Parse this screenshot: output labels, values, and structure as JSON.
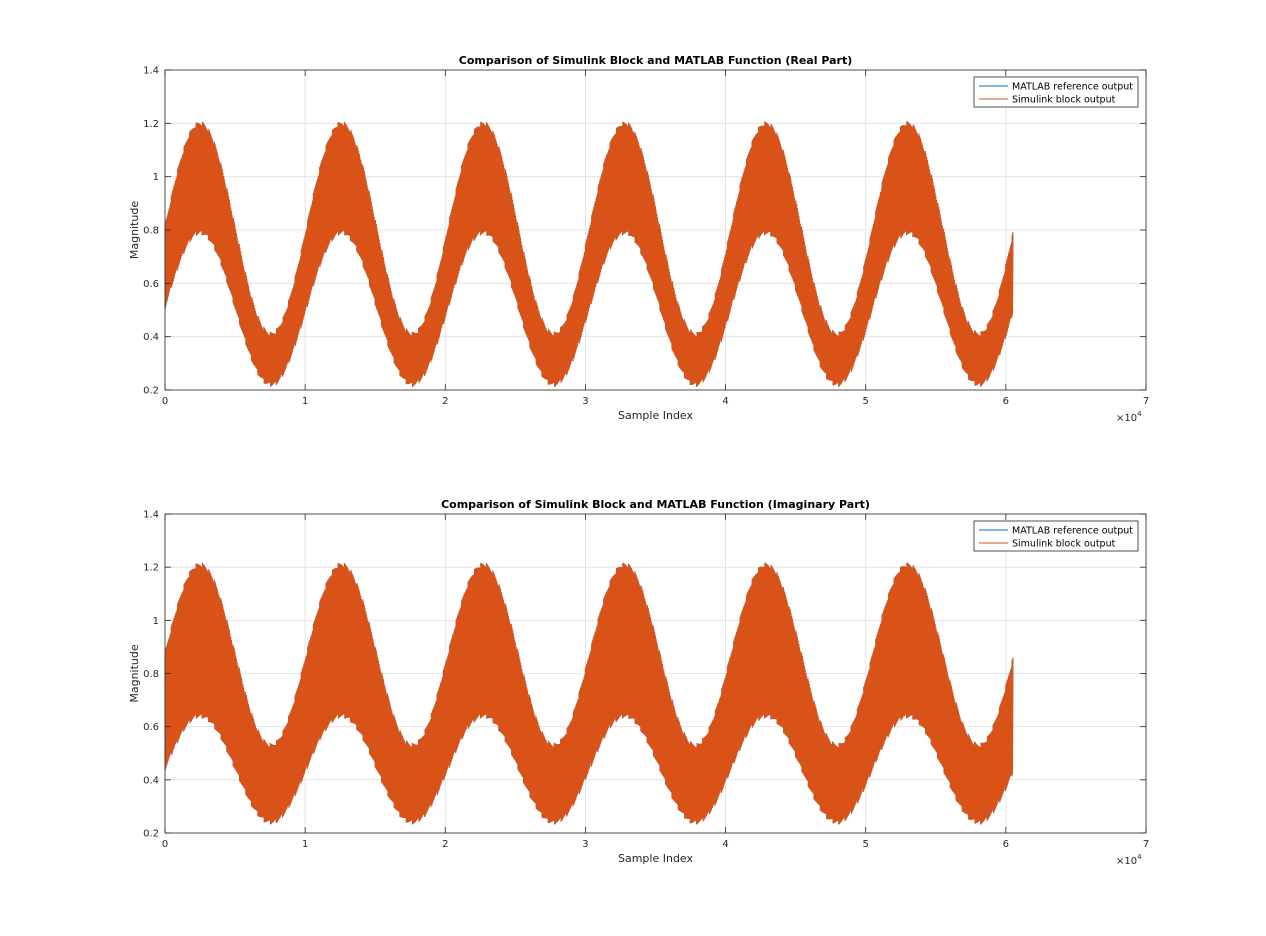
{
  "figure": {
    "background": "#ffffff"
  },
  "chart_data": [
    {
      "type": "line",
      "title": "Comparison of Simulink Block and MATLAB Function (Real Part)",
      "xlabel": "Sample Index",
      "ylabel": "Magnitude",
      "xlim": [
        0,
        70000
      ],
      "ylim": [
        0.2,
        1.4
      ],
      "xticks": [
        0,
        10000,
        20000,
        30000,
        40000,
        50000,
        60000,
        70000
      ],
      "xtick_labels": [
        "0",
        "1",
        "2",
        "3",
        "4",
        "5",
        "6",
        "7"
      ],
      "yticks": [
        0.2,
        0.4,
        0.6,
        0.8,
        1.0,
        1.2,
        1.4
      ],
      "ytick_labels": [
        "0.2",
        "0.4",
        "0.6",
        "0.8",
        "1",
        "1.2",
        "1.4"
      ],
      "x_exponent_base": "×10",
      "x_exponent": "4",
      "grid": true,
      "legend_position": "top-right",
      "x_end": 60500,
      "period": 10100,
      "series": [
        {
          "name": "MATLAB reference output",
          "color": "#0072bd",
          "envelope": {
            "upper_peak_at_x": [
              2500,
              12600,
              22700,
              32800,
              42900,
              53000
            ],
            "upper_peak": 1.2,
            "upper_trough": 0.41,
            "lower_peak": 0.79,
            "lower_trough": 0.22
          }
        },
        {
          "name": "Simulink block output",
          "color": "#d95319",
          "envelope": {
            "upper_peak_at_x": [
              2500,
              12600,
              22700,
              32800,
              42900,
              53000
            ],
            "upper_peak": 1.2,
            "upper_trough": 0.41,
            "lower_peak": 0.79,
            "lower_trough": 0.22
          }
        }
      ]
    },
    {
      "type": "line",
      "title": "Comparison of Simulink Block and MATLAB Function (Imaginary Part)",
      "xlabel": "Sample Index",
      "ylabel": "Magnitude",
      "xlim": [
        0,
        70000
      ],
      "ylim": [
        0.2,
        1.4
      ],
      "xticks": [
        0,
        10000,
        20000,
        30000,
        40000,
        50000,
        60000,
        70000
      ],
      "xtick_labels": [
        "0",
        "1",
        "2",
        "3",
        "4",
        "5",
        "6",
        "7"
      ],
      "yticks": [
        0.2,
        0.4,
        0.6,
        0.8,
        1.0,
        1.2,
        1.4
      ],
      "ytick_labels": [
        "0.2",
        "0.4",
        "0.6",
        "0.8",
        "1",
        "1.2",
        "1.4"
      ],
      "x_exponent_base": "×10",
      "x_exponent": "4",
      "grid": true,
      "legend_position": "top-right",
      "x_end": 60500,
      "period": 10100,
      "series": [
        {
          "name": "MATLAB reference output",
          "color": "#0072bd",
          "envelope": {
            "upper_peak_at_x": [
              2500,
              12600,
              22700,
              32800,
              42900,
              53000
            ],
            "upper_peak": 1.21,
            "upper_trough": 0.53,
            "lower_peak": 0.64,
            "lower_trough": 0.24
          }
        },
        {
          "name": "Simulink block output",
          "color": "#d95319",
          "envelope": {
            "upper_peak_at_x": [
              2500,
              12600,
              22700,
              32800,
              42900,
              53000
            ],
            "upper_peak": 1.21,
            "upper_trough": 0.53,
            "lower_peak": 0.64,
            "lower_trough": 0.24
          }
        }
      ]
    }
  ]
}
